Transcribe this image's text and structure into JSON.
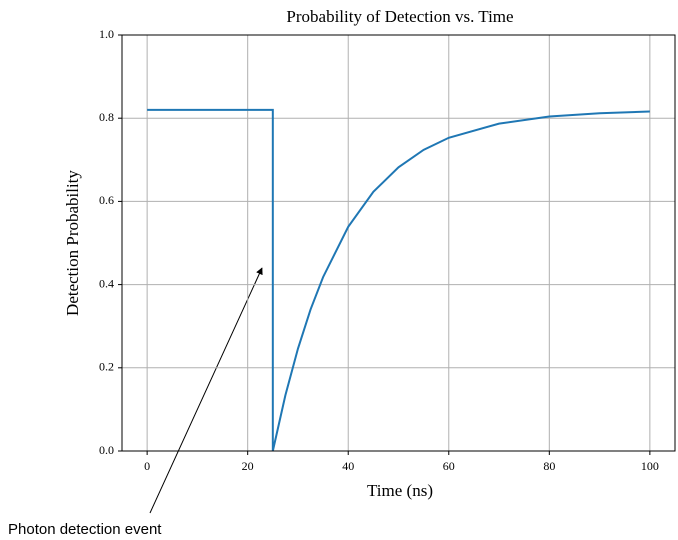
{
  "chart_data": {
    "type": "line",
    "title": "Probability of Detection vs. Time",
    "x_label": "Time (ns)",
    "y_label": "Detection Probability",
    "x": [
      0,
      25,
      25,
      27.5,
      30,
      32.5,
      35,
      40,
      45,
      50,
      55,
      60,
      70,
      80,
      90,
      100
    ],
    "values": [
      0.82,
      0.82,
      0,
      0.134,
      0.246,
      0.34,
      0.418,
      0.539,
      0.623,
      0.682,
      0.724,
      0.753,
      0.787,
      0.804,
      0.812,
      0.816
    ],
    "color": "#1f77b4",
    "xlim": [
      -5,
      105
    ],
    "xticks": [
      0,
      20,
      40,
      60,
      80,
      100
    ],
    "ylim": [
      0,
      1
    ],
    "yticks": [
      {
        "value": 0,
        "label": "0.0"
      },
      0.2,
      0.4,
      0.6,
      0.8,
      {
        "value": 1,
        "label": "1.0"
      }
    ],
    "grid": true,
    "annotation": "Photon detection event"
  }
}
